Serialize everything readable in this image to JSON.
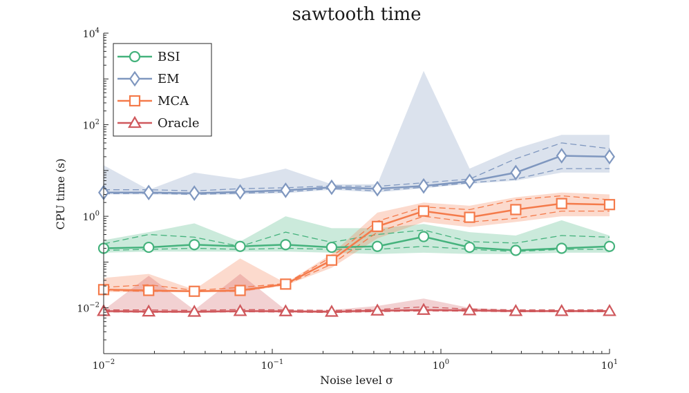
{
  "chart_data": {
    "type": "line",
    "title": "sawtooth time",
    "xlabel": "Noise level σ",
    "ylabel": "CPU time (s)",
    "xscale": "log",
    "yscale": "log",
    "xlim": [
      0.01,
      10
    ],
    "ylim": [
      0.001,
      10000
    ],
    "x_ticks": [
      {
        "value": 0.01,
        "base": "10",
        "exp": "−2"
      },
      {
        "value": 0.1,
        "base": "10",
        "exp": "−1"
      },
      {
        "value": 1,
        "base": "10",
        "exp": "0"
      },
      {
        "value": 10,
        "base": "10",
        "exp": "1"
      }
    ],
    "y_ticks": [
      {
        "value": 0.01,
        "base": "10",
        "exp": "−2"
      },
      {
        "value": 1,
        "base": "10",
        "exp": "0"
      },
      {
        "value": 100,
        "base": "10",
        "exp": "2"
      },
      {
        "value": 10000,
        "base": "10",
        "exp": "4"
      }
    ],
    "grid": false,
    "legend_position": "top-left",
    "x": [
      0.01,
      0.0185,
      0.0345,
      0.0645,
      0.12,
      0.225,
      0.42,
      0.79,
      1.48,
      2.78,
      5.2,
      10.0
    ],
    "series": [
      {
        "name": "BSI",
        "color": "#44b27c",
        "marker": "circle",
        "values": [
          0.2,
          0.21,
          0.24,
          0.22,
          0.24,
          0.21,
          0.22,
          0.36,
          0.21,
          0.18,
          0.2,
          0.22
        ],
        "dash_upper": [
          0.25,
          0.4,
          0.35,
          0.22,
          0.45,
          0.27,
          0.4,
          0.5,
          0.28,
          0.26,
          0.38,
          0.35
        ],
        "dash_lower": [
          0.18,
          0.19,
          0.2,
          0.19,
          0.2,
          0.19,
          0.19,
          0.22,
          0.19,
          0.17,
          0.19,
          0.19
        ],
        "band_upper": [
          0.3,
          0.45,
          0.7,
          0.28,
          1.0,
          0.55,
          0.55,
          0.68,
          0.45,
          0.38,
          0.82,
          0.38
        ],
        "band_lower": [
          0.16,
          0.17,
          0.17,
          0.17,
          0.17,
          0.16,
          0.15,
          0.16,
          0.15,
          0.15,
          0.16,
          0.16
        ]
      },
      {
        "name": "EM",
        "color": "#7f97bf",
        "marker": "diamond",
        "values": [
          3.3,
          3.3,
          3.2,
          3.4,
          3.7,
          4.3,
          4.0,
          4.6,
          5.8,
          9.0,
          21.0,
          20.0
        ],
        "dash_upper": [
          3.8,
          3.8,
          3.6,
          4.0,
          4.2,
          4.6,
          4.5,
          5.4,
          6.5,
          18.0,
          40.0,
          30.0
        ],
        "dash_lower": [
          3.1,
          3.2,
          3.0,
          3.2,
          3.4,
          4.0,
          3.6,
          4.3,
          5.4,
          6.5,
          11.0,
          11.0
        ],
        "band_upper": [
          13.0,
          3.8,
          9.0,
          6.5,
          11.0,
          5.0,
          5.0,
          1500.0,
          11.0,
          30.0,
          60.0,
          60.0
        ],
        "band_lower": [
          3.0,
          3.0,
          2.9,
          3.0,
          3.2,
          3.8,
          3.3,
          4.1,
          5.1,
          6.0,
          9.0,
          9.0
        ]
      },
      {
        "name": "MCA",
        "color": "#f47a4a",
        "marker": "square",
        "values": [
          0.025,
          0.024,
          0.023,
          0.024,
          0.033,
          0.11,
          0.6,
          1.3,
          0.95,
          1.4,
          1.9,
          1.8
        ],
        "dash_upper": [
          0.028,
          0.032,
          0.024,
          0.028,
          0.034,
          0.13,
          0.78,
          1.6,
          1.4,
          2.3,
          2.8,
          2.3
        ],
        "dash_lower": [
          0.024,
          0.023,
          0.023,
          0.023,
          0.032,
          0.09,
          0.45,
          1.0,
          0.75,
          0.9,
          1.3,
          1.3
        ],
        "band_upper": [
          0.045,
          0.055,
          0.025,
          0.12,
          0.035,
          0.15,
          1.2,
          2.0,
          1.7,
          2.6,
          3.3,
          3.0
        ],
        "band_lower": [
          0.022,
          0.022,
          0.022,
          0.022,
          0.031,
          0.075,
          0.33,
          0.75,
          0.58,
          0.75,
          1.0,
          1.0
        ]
      },
      {
        "name": "Oracle",
        "color": "#cf585c",
        "marker": "triangle",
        "values": [
          0.0085,
          0.0083,
          0.0082,
          0.0085,
          0.0084,
          0.0082,
          0.0087,
          0.009,
          0.0088,
          0.0085,
          0.0085,
          0.0085
        ],
        "dash_upper": [
          0.009,
          0.009,
          0.0088,
          0.0092,
          0.009,
          0.0088,
          0.0092,
          0.0105,
          0.0094,
          0.009,
          0.009,
          0.009
        ],
        "dash_lower": [
          0.0082,
          0.008,
          0.008,
          0.0082,
          0.0081,
          0.0079,
          0.0083,
          0.0086,
          0.0085,
          0.0082,
          0.0082,
          0.0082
        ],
        "band_upper": [
          0.009,
          0.05,
          0.009,
          0.055,
          0.009,
          0.009,
          0.011,
          0.016,
          0.01,
          0.009,
          0.009,
          0.009
        ],
        "band_lower": [
          0.0079,
          0.0078,
          0.0077,
          0.008,
          0.0079,
          0.0077,
          0.0081,
          0.0083,
          0.0082,
          0.008,
          0.008,
          0.008
        ]
      }
    ]
  }
}
